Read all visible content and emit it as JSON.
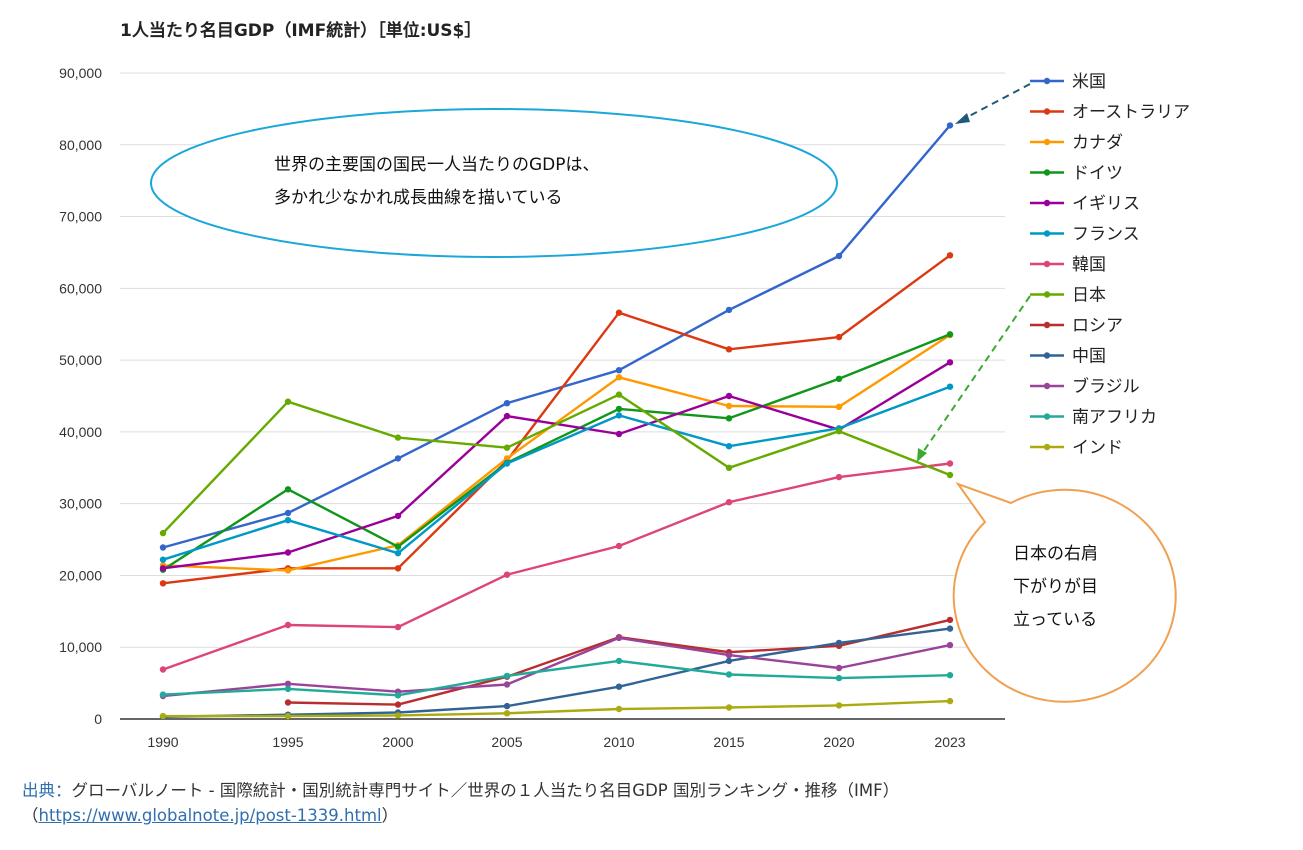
{
  "chart_data": {
    "type": "line",
    "title": "1人当たり名目GDP（IMF統計）［単位:US$］",
    "xlabel": "",
    "ylabel": "",
    "categories": [
      "1990",
      "1995",
      "2000",
      "2005",
      "2010",
      "2015",
      "2020",
      "2023"
    ],
    "ylim": [
      0,
      90000
    ],
    "yticks": [
      0,
      10000,
      20000,
      30000,
      40000,
      50000,
      60000,
      70000,
      80000,
      90000
    ],
    "ytick_labels": [
      "0",
      "10,000",
      "20,000",
      "30,000",
      "40,000",
      "50,000",
      "60,000",
      "70,000",
      "80,000",
      "90,000"
    ],
    "grid": true,
    "legend_position": "right",
    "series": [
      {
        "name": "米国",
        "color": "#3366cc",
        "values": [
          23900,
          28700,
          36300,
          44000,
          48600,
          57000,
          64500,
          82700
        ]
      },
      {
        "name": "オーストラリア",
        "color": "#dc3912",
        "values": [
          18900,
          21000,
          21000,
          36000,
          56600,
          51500,
          53200,
          64600
        ]
      },
      {
        "name": "カナダ",
        "color": "#ff9900",
        "values": [
          21400,
          20700,
          24200,
          36300,
          47600,
          43600,
          43500,
          53500
        ]
      },
      {
        "name": "ドイツ",
        "color": "#109618",
        "values": [
          20800,
          32000,
          24000,
          35700,
          43200,
          41900,
          47400,
          53600
        ]
      },
      {
        "name": "イギリス",
        "color": "#990099",
        "values": [
          21000,
          23200,
          28300,
          42200,
          39700,
          45000,
          40300,
          49700
        ]
      },
      {
        "name": "フランス",
        "color": "#0099c6",
        "values": [
          22200,
          27700,
          23100,
          35600,
          42300,
          38000,
          40500,
          46300
        ]
      },
      {
        "name": "韓国",
        "color": "#dd4477",
        "values": [
          6900,
          13100,
          12800,
          20100,
          24100,
          30200,
          33700,
          35600
        ]
      },
      {
        "name": "日本",
        "color": "#66aa00",
        "values": [
          25900,
          44200,
          39200,
          37800,
          45200,
          35000,
          40100,
          34000
        ]
      },
      {
        "name": "ロシア",
        "color": "#b82e2e",
        "values": [
          null,
          2300,
          2000,
          5900,
          11400,
          9300,
          10200,
          13800
        ]
      },
      {
        "name": "中国",
        "color": "#316395",
        "values": [
          300,
          600,
          900,
          1800,
          4500,
          8100,
          10600,
          12600
        ]
      },
      {
        "name": "ブラジル",
        "color": "#994499",
        "values": [
          3200,
          4900,
          3800,
          4800,
          11300,
          8900,
          7100,
          10300
        ]
      },
      {
        "name": "南アフリカ",
        "color": "#22aa99",
        "values": [
          3400,
          4200,
          3300,
          6000,
          8100,
          6200,
          5700,
          6100
        ]
      },
      {
        "name": "インド",
        "color": "#aaaa11",
        "values": [
          400,
          400,
          500,
          800,
          1400,
          1600,
          1900,
          2500
        ]
      }
    ],
    "annotations": [
      {
        "text": "世界の主要国の国民一人当たりのGDPは、\n多かれ少なかれ成長曲線を描いている",
        "color": "#1aa7d9"
      },
      {
        "text": "日本の右肩\n下がりが目\n立っている",
        "color": "#f0a050"
      }
    ]
  },
  "source": {
    "prefix": "出典：",
    "text": "グローバルノート - 国際統計・国別統計専門サイト／世界の１人当たり名目GDP 国別ランキング・推移（IMF）",
    "link_open": "（",
    "url": "https://www.globalnote.jp/post-1339.html",
    "link_close": "）"
  }
}
